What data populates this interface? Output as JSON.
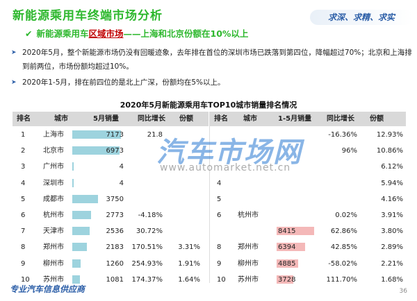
{
  "header": {
    "title": "新能源乘用车终端市场分析",
    "slogan": "求深、求精、求实",
    "subtitle_pre": "新能源乘用车",
    "subtitle_highlight": "区域市场",
    "subtitle_post": "——上海和北京份额在10%以上"
  },
  "paragraphs": [
    {
      "text": "2020年5月，整个新能源市场仍没有回暖迹象，去年排在首位的深圳市场已跌落到第四位，降幅超过70%；北京和上海排到前两位，市场份额均超过10%。"
    },
    {
      "text": "2020年1-5月，排在前四位的是北上广深，份额均在5%以上。"
    }
  ],
  "table_title": "2020年5月新能源乘用车TOP10城市销量排名情况",
  "left_headers": [
    "排名",
    "城市",
    "5月销量",
    "同比增长",
    "份额"
  ],
  "right_headers": [
    "排名",
    "城市",
    "1-5月销量",
    "同比增长",
    "份额"
  ],
  "colors": {
    "left_bar": "#9dd3de",
    "right_bar": "#f4b8b8",
    "title_green": "#2eb82e",
    "accent_red": "#c00000",
    "blue": "#2d5fa8"
  },
  "chart_data": [
    {
      "type": "table",
      "title": "2020年5月新能源乘用车TOP10城市销量排名情况",
      "columns": [
        "排名",
        "城市",
        "5月销量",
        "同比增长",
        "份额"
      ],
      "rows": [
        {
          "rank": "1",
          "city": "上海市",
          "sales": 7173,
          "sales_label": "7173",
          "growth": "21.8",
          "share": ""
        },
        {
          "rank": "2",
          "city": "北京市",
          "sales": 6973,
          "sales_label": "6973",
          "growth": "",
          "share": ""
        },
        {
          "rank": "3",
          "city": "广州市",
          "sales": 4,
          "sales_label": "4",
          "growth": "",
          "share": ""
        },
        {
          "rank": "4",
          "city": "深圳市",
          "sales": 4,
          "sales_label": "4",
          "growth": "",
          "share": ""
        },
        {
          "rank": "5",
          "city": "成都市",
          "sales": 3750,
          "sales_label": "3750",
          "growth": "",
          "share": ""
        },
        {
          "rank": "6",
          "city": "杭州市",
          "sales": 2773,
          "sales_label": "2773",
          "growth": "-4.18%",
          "share": ""
        },
        {
          "rank": "7",
          "city": "天津市",
          "sales": 2536,
          "sales_label": "2536",
          "growth": "30.72%",
          "share": ""
        },
        {
          "rank": "8",
          "city": "郑州市",
          "sales": 2183,
          "sales_label": "2183",
          "growth": "170.51%",
          "share": "3.31%"
        },
        {
          "rank": "9",
          "city": "柳州市",
          "sales": 1260,
          "sales_label": "1260",
          "growth": "254.93%",
          "share": "1.91%"
        },
        {
          "rank": "10",
          "city": "苏州市",
          "sales": 1081,
          "sales_label": "1081",
          "growth": "174.37%",
          "share": "1.64%"
        }
      ]
    },
    {
      "type": "table",
      "columns": [
        "排名",
        "城市",
        "1-5月销量",
        "同比增长",
        "份额"
      ],
      "rows": [
        {
          "rank": "",
          "city": "",
          "sales": null,
          "sales_label": "",
          "growth": "-16.36%",
          "share": "12.93%"
        },
        {
          "rank": "",
          "city": "",
          "sales": null,
          "sales_label": "",
          "growth": "96%",
          "share": "10.86%"
        },
        {
          "rank": "",
          "city": "",
          "sales": null,
          "sales_label": "",
          "growth": "",
          "share": "6.12%"
        },
        {
          "rank": "4",
          "city": "",
          "sales": null,
          "sales_label": "",
          "growth": "",
          "share": "5.94%"
        },
        {
          "rank": "5",
          "city": "",
          "sales": null,
          "sales_label": "",
          "growth": "",
          "share": "4.16%"
        },
        {
          "rank": "6",
          "city": "杭州市",
          "sales": null,
          "sales_label": "",
          "growth": "0.02%",
          "share": "3.91%"
        },
        {
          "rank": "",
          "city": "",
          "sales": 8415,
          "sales_label": "8415",
          "growth": "62.86%",
          "share": "3.80%"
        },
        {
          "rank": "8",
          "city": "郑州市",
          "sales": 6394,
          "sales_label": "6394",
          "growth": "42.85%",
          "share": "2.89%"
        },
        {
          "rank": "9",
          "city": "柳州市",
          "sales": 4885,
          "sales_label": "4885",
          "growth": "-58.02%",
          "share": "2.21%"
        },
        {
          "rank": "10",
          "city": "苏州市",
          "sales": 3728,
          "sales_label": "3728",
          "growth": "111.70%",
          "share": "1.68%"
        }
      ]
    }
  ],
  "watermark": {
    "brand": "汽车市场网",
    "url": "www.automarket.net.cn"
  },
  "footer": {
    "text": "专业汽车信息供应商",
    "page": "36"
  }
}
